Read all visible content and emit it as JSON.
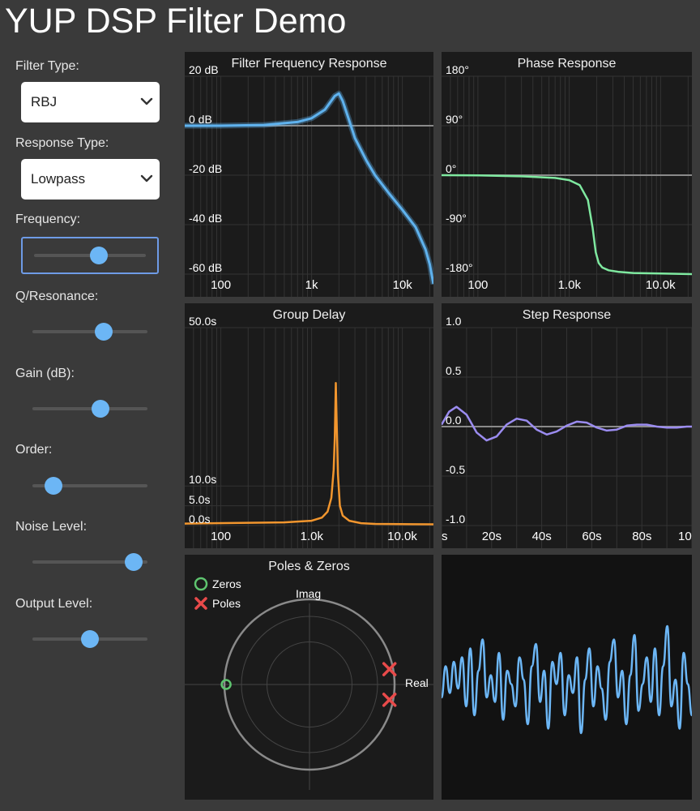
{
  "app": {
    "title": "YUP DSP Filter Demo"
  },
  "controls": {
    "filter_type": {
      "label": "Filter Type:",
      "value": "RBJ"
    },
    "response_type": {
      "label": "Response Type:",
      "value": "Lowpass"
    },
    "frequency": {
      "label": "Frequency:",
      "value": 0.58
    },
    "q_resonance": {
      "label": "Q/Resonance:",
      "value": 0.62
    },
    "gain": {
      "label": "Gain (dB):",
      "value": 0.59
    },
    "order": {
      "label": "Order:",
      "value": 0.18
    },
    "noise_level": {
      "label": "Noise Level:",
      "value": 0.88
    },
    "output_level": {
      "label": "Output Level:",
      "value": 0.5
    }
  },
  "icons": {
    "dropdown": "chevron-down-icon",
    "zero_marker": "circle-icon",
    "pole_marker": "cross-icon"
  },
  "colors": {
    "accent": "#6cb6f5",
    "magnitude": "#5fb2ee",
    "phase": "#7fe9a0",
    "group_delay": "#f2962e",
    "step": "#9b8cf0",
    "zeros": "#5ec46f",
    "poles": "#e84a4a",
    "output": "#6cb6f5"
  },
  "chart_data": [
    {
      "id": "frequency-response",
      "type": "line",
      "title": "Filter Frequency Response",
      "x_ticks": [
        "100",
        "1k",
        "10k"
      ],
      "y_ticks": [
        "20 dB",
        "0 dB",
        "-20 dB",
        "-40 dB",
        "-60 dB"
      ],
      "xscale": "log",
      "xlim": [
        40,
        22000
      ],
      "ylim": [
        -60,
        20
      ],
      "grid": true,
      "series": [
        {
          "x": [
            40,
            100,
            300,
            700,
            1000,
            1400,
            1800,
            2000,
            2200,
            2600,
            3000,
            4000,
            5000,
            7000,
            10000,
            14000,
            18000,
            20000,
            22000
          ],
          "y": [
            0,
            0,
            0.3,
            1.5,
            3,
            6.5,
            12,
            13,
            10,
            2,
            -5,
            -14,
            -20,
            -27,
            -34,
            -41,
            -50,
            -56,
            -64
          ]
        }
      ]
    },
    {
      "id": "phase-response",
      "type": "line",
      "title": "Phase Response",
      "x_ticks": [
        "100",
        "1.0k",
        "10.0k"
      ],
      "y_ticks": [
        "180°",
        "90°",
        "0°",
        "-90°",
        "-180°"
      ],
      "xscale": "log",
      "xlim": [
        40,
        22000
      ],
      "ylim": [
        -180,
        180
      ],
      "grid": true,
      "series": [
        {
          "x": [
            40,
            100,
            300,
            700,
            1000,
            1300,
            1600,
            1800,
            1950,
            2100,
            2300,
            2700,
            3500,
            5000,
            10000,
            22000
          ],
          "y": [
            0,
            -0.5,
            -2,
            -5,
            -9,
            -18,
            -45,
            -95,
            -140,
            -160,
            -168,
            -173,
            -176,
            -178,
            -179,
            -180
          ]
        }
      ]
    },
    {
      "id": "group-delay",
      "type": "line",
      "title": "Group Delay",
      "x_ticks": [
        "100",
        "1.0k",
        "10.0k"
      ],
      "y_ticks": [
        "50.0s",
        "10.0s",
        "5.0s",
        "0.0s"
      ],
      "xscale": "log",
      "xlim": [
        40,
        22000
      ],
      "ylim": [
        0,
        50
      ],
      "grid": true,
      "series": [
        {
          "x": [
            40,
            500,
            1000,
            1300,
            1500,
            1650,
            1750,
            1800,
            1850,
            1900,
            1950,
            2050,
            2200,
            2600,
            3500,
            5000,
            22000
          ],
          "y": [
            0.5,
            0.8,
            1.2,
            2,
            3.5,
            7,
            14,
            22,
            36,
            24,
            13,
            5,
            2.5,
            1.2,
            0.6,
            0.4,
            0.3
          ]
        }
      ]
    },
    {
      "id": "step-response",
      "type": "line",
      "title": "Step Response",
      "x_ticks": [
        "s",
        "20s",
        "40s",
        "60s",
        "80s",
        "10"
      ],
      "y_ticks": [
        "1.0",
        "0.5",
        "0.0",
        "-0.5",
        "-1.0"
      ],
      "xlim": [
        0,
        100
      ],
      "ylim": [
        -1,
        1
      ],
      "grid": true,
      "series": [
        {
          "x": [
            0,
            3,
            6,
            10,
            14,
            18,
            22,
            26,
            30,
            34,
            38,
            42,
            46,
            50,
            54,
            58,
            62,
            66,
            70,
            74,
            78,
            82,
            86,
            90,
            94,
            98,
            100
          ],
          "y": [
            0.02,
            0.15,
            0.2,
            0.12,
            -0.06,
            -0.14,
            -0.1,
            0.02,
            0.08,
            0.06,
            -0.03,
            -0.08,
            -0.05,
            0.01,
            0.05,
            0.04,
            -0.01,
            -0.04,
            -0.03,
            0.01,
            0.02,
            0.02,
            0.0,
            -0.01,
            -0.01,
            0.0,
            0.0
          ]
        }
      ]
    },
    {
      "id": "poles-zeros",
      "type": "scatter",
      "title": "Poles & Zeros",
      "legend": [
        "Zeros",
        "Poles"
      ],
      "legend_position": "top-left",
      "axis_labels": {
        "x": "Real",
        "y": "Imag"
      },
      "unit_circle": true,
      "zeros": [
        {
          "re": -0.98,
          "im": 0.0
        }
      ],
      "poles": [
        {
          "re": 0.94,
          "im": 0.18
        },
        {
          "re": 0.94,
          "im": -0.18
        }
      ]
    },
    {
      "id": "output-waveform",
      "type": "line",
      "ylim": [
        -1,
        1
      ],
      "series": [
        {
          "values": [
            -0.1,
            0.25,
            -0.05,
            0.3,
            0.0,
            0.35,
            -0.2,
            0.45,
            -0.3,
            0.2,
            0.55,
            -0.1,
            0.15,
            -0.15,
            0.4,
            -0.35,
            0.2,
            0.05,
            -0.2,
            0.35,
            0.1,
            -0.4,
            0.25,
            0.5,
            -0.15,
            0.2,
            -0.45,
            0.3,
            0.05,
            0.4,
            -0.3,
            0.15,
            -0.05,
            0.35,
            -0.5,
            0.1,
            0.45,
            -0.2,
            0.25,
            0.0,
            -0.35,
            0.3,
            0.55,
            -0.1,
            0.2,
            -0.4,
            0.15,
            0.6,
            -0.25,
            0.05,
            0.35,
            -0.15,
            0.45,
            -0.3,
            0.25,
            0.7,
            -0.2,
            0.1,
            -0.45,
            0.4,
            0.05,
            -0.3
          ]
        }
      ]
    }
  ]
}
